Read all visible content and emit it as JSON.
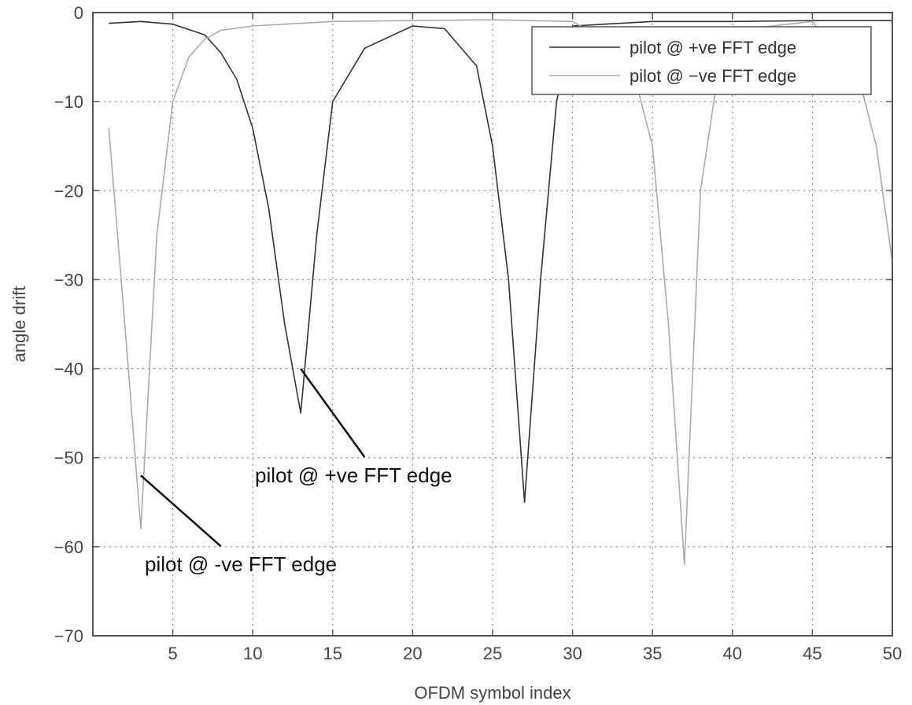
{
  "chart_data": {
    "type": "line",
    "title": "",
    "xlabel": "OFDM symbol index",
    "ylabel": "angle drift",
    "xlim": [
      0,
      50
    ],
    "ylim": [
      -70,
      0
    ],
    "grid": true,
    "xticks": [
      5,
      10,
      15,
      20,
      25,
      30,
      35,
      40,
      45,
      50
    ],
    "yticks": [
      0,
      -10,
      -20,
      -30,
      -40,
      -50,
      -60,
      -70
    ],
    "xtick_labels": [
      "5",
      "10",
      "15",
      "20",
      "25",
      "30",
      "35",
      "40",
      "45",
      "50"
    ],
    "ytick_labels": [
      "0",
      "−10",
      "−20",
      "−30",
      "−40",
      "−50",
      "−60",
      "−70"
    ],
    "legend_position": "top-right",
    "series": [
      {
        "name": "pilot @ +ve FFT edge",
        "color": "#333333",
        "x": [
          1,
          3,
          5,
          7,
          8,
          9,
          10,
          11,
          12,
          13,
          14,
          15,
          17,
          20,
          22,
          24,
          25,
          26,
          27,
          28,
          29,
          30,
          35,
          40,
          45,
          50
        ],
        "y": [
          -1.2,
          -1.0,
          -1.3,
          -2.5,
          -4.5,
          -7.5,
          -13,
          -22,
          -35,
          -45,
          -25,
          -10,
          -4,
          -1.5,
          -1.8,
          -6,
          -15,
          -30,
          -55,
          -30,
          -10,
          -1.5,
          -1.0,
          -1.0,
          -0.9,
          -0.9
        ]
      },
      {
        "name": "pilot @ −ve FFT edge",
        "color": "#aaaaaa",
        "x": [
          1,
          2,
          3,
          4,
          5,
          6,
          7,
          8,
          10,
          15,
          20,
          25,
          30,
          33,
          34,
          35,
          36,
          37,
          38,
          39,
          40,
          45,
          48,
          49,
          50
        ],
        "y": [
          -13,
          -35,
          -58,
          -25,
          -10,
          -5,
          -3,
          -2,
          -1.5,
          -1.0,
          -0.9,
          -0.8,
          -1.0,
          -4,
          -8,
          -15,
          -35,
          -62,
          -20,
          -8,
          -2,
          -1.0,
          -8,
          -15,
          -28
        ]
      }
    ],
    "annotations": [
      {
        "text": "pilot @ +ve FFT edge",
        "target": [
          13,
          -40
        ],
        "label_at": [
          17,
          -51
        ]
      },
      {
        "text": "pilot @ -ve FFT edge",
        "target": [
          3,
          -52
        ],
        "label_at": [
          8,
          -61
        ]
      }
    ]
  }
}
